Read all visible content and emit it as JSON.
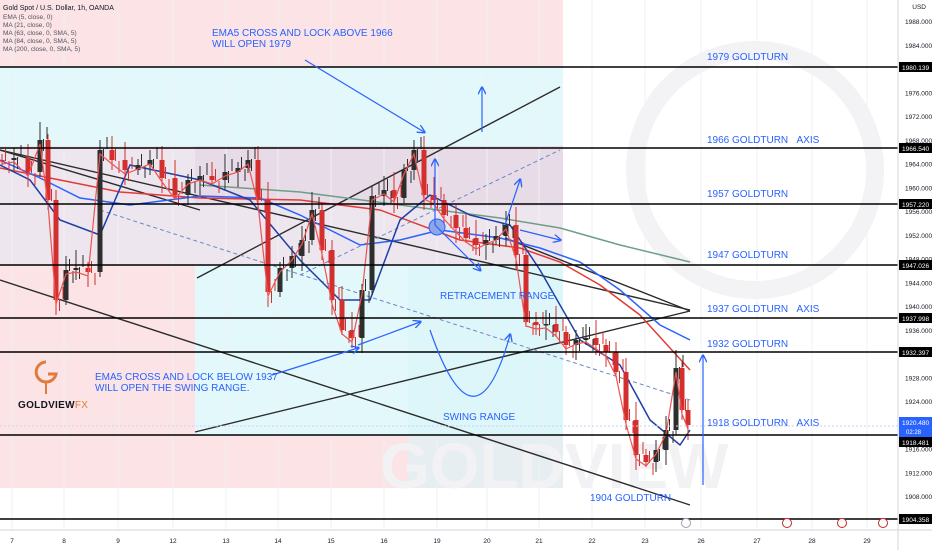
{
  "header": {
    "title": "Gold Spot / U.S. Dollar, 1h, OANDA",
    "indicators": [
      "EMA (5, close, 0)",
      "MA (21, close, 0)",
      "MA (63, close, 0, SMA, 5)",
      "MA (84, close, 0, SMA, 5)",
      "MA (200, close, 0, SMA, 5)"
    ]
  },
  "axis": {
    "currency": "USD",
    "y_ticks": [
      "1988.000",
      "1984.000",
      "1980.000",
      "1976.000",
      "1972.000",
      "1968.000",
      "1964.000",
      "1960.000",
      "1956.000",
      "1952.000",
      "1948.000",
      "1944.000",
      "1940.000",
      "1936.000",
      "1932.000",
      "1928.000",
      "1924.000",
      "1920.000",
      "1916.000",
      "1912.000",
      "1908.000"
    ],
    "x_ticks": [
      "7",
      "8",
      "9",
      "12",
      "13",
      "14",
      "15",
      "16",
      "19",
      "20",
      "21",
      "22",
      "23",
      "26",
      "27",
      "28",
      "29"
    ],
    "level_tags": [
      "1980.139",
      "1966.540",
      "1957.220",
      "1947.026",
      "1937.998",
      "1932.397",
      "1918.481",
      "1904.358"
    ],
    "current_price": "1920.480",
    "countdown": "02:28"
  },
  "annotations": {
    "ema_up": "EMA5 CROSS AND LOCK ABOVE 1966\nWILL OPEN 1979",
    "ema_down": "EMA5 CROSS AND LOCK BELOW 1937\nWILL OPEN THE SWING RANGE.",
    "retracement": "RETRACEMENT RANGE",
    "swing": "SWING RANGE",
    "bottom_level": "1904 GOLDTURN"
  },
  "level_labels": [
    {
      "text": "1979 GOLDTURN",
      "axis": ""
    },
    {
      "text": "1966 GOLDTURN",
      "axis": "AXIS"
    },
    {
      "text": "1957 GOLDTURN",
      "axis": ""
    },
    {
      "text": "1947 GOLDTURN",
      "axis": ""
    },
    {
      "text": "1937 GOLDTURN",
      "axis": "AXIS"
    },
    {
      "text": "1932 GOLDTURN",
      "axis": ""
    },
    {
      "text": "1918 GOLDTURN",
      "axis": "AXIS"
    }
  ],
  "branding": {
    "logo_main": "GOLDVIEW",
    "logo_fx": "FX"
  },
  "colors": {
    "level_line": "#000000",
    "annotation": "#2962ff",
    "bull_candle": "#2e2e2e",
    "bear_candle": "#d32f2f",
    "ema5": "#ef5350",
    "ma21": "#1e3fa8",
    "ma63": "#2962ff",
    "ma84": "#e53935",
    "ma200": "#6e9e86",
    "zone_pink": "#fbe3e6",
    "zone_cyan": "#e3f8fa",
    "zone_grey": "#e8e0ea",
    "tag_bg": "#000000",
    "price_tag": "#2962ff"
  },
  "chart_data": {
    "type": "candlestick",
    "title": "Gold Spot / U.S. Dollar, 1h, OANDA",
    "ylabel": "USD",
    "ylim": [
      1902,
      1990
    ],
    "x_categories": [
      "7",
      "8",
      "9",
      "12",
      "13",
      "14",
      "15",
      "16",
      "19",
      "20",
      "21",
      "22",
      "23",
      "26",
      "27",
      "28",
      "29"
    ],
    "levels": [
      1980.139,
      1966.54,
      1957.22,
      1947.026,
      1937.998,
      1932.397,
      1918.481,
      1904.358
    ],
    "price_path_key_points": [
      {
        "x": "7",
        "y": 1964
      },
      {
        "x": "8",
        "y": 1941
      },
      {
        "x": "8",
        "y": 1966
      },
      {
        "x": "9",
        "y": 1963
      },
      {
        "x": "12",
        "y": 1958
      },
      {
        "x": "13",
        "y": 1964
      },
      {
        "x": "14",
        "y": 1942
      },
      {
        "x": "14",
        "y": 1951
      },
      {
        "x": "15",
        "y": 1932
      },
      {
        "x": "16",
        "y": 1960
      },
      {
        "x": "19",
        "y": 1967
      },
      {
        "x": "19",
        "y": 1958
      },
      {
        "x": "20",
        "y": 1950
      },
      {
        "x": "20",
        "y": 1955
      },
      {
        "x": "21",
        "y": 1935
      },
      {
        "x": "22",
        "y": 1933
      },
      {
        "x": "23",
        "y": 1913
      },
      {
        "x": "23",
        "y": 1931
      },
      {
        "x": "23",
        "y": 1920.48
      }
    ],
    "grid": false,
    "legend": "top-left"
  }
}
